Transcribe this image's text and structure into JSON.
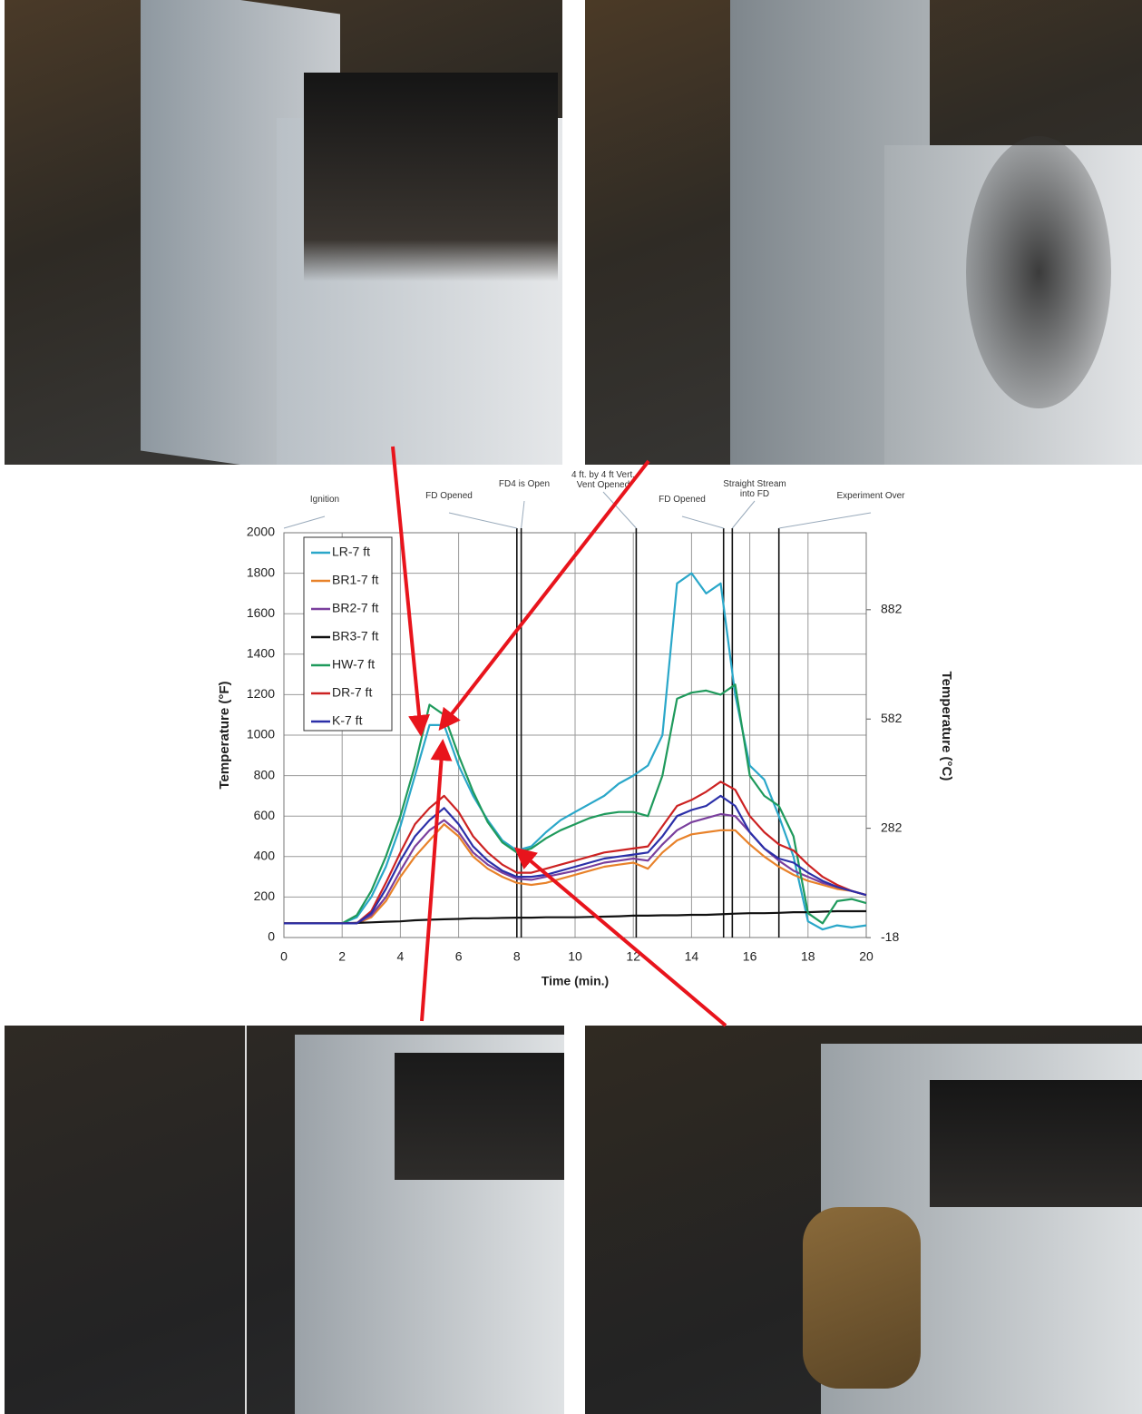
{
  "chart_data": {
    "type": "line",
    "x_label": "Time (min.)",
    "y_label": "Temperature (°F)",
    "y2_label": "Temperature (°C)",
    "xlim": [
      0,
      20
    ],
    "xticks": [
      0,
      2,
      4,
      6,
      8,
      10,
      12,
      14,
      16,
      18,
      20
    ],
    "ylim": [
      0,
      2000
    ],
    "yticks": [
      0,
      200,
      400,
      600,
      800,
      1000,
      1200,
      1400,
      1600,
      1800,
      2000
    ],
    "y2lim": [
      -17.78,
      1093.33
    ],
    "y2ticks": [
      -18,
      282,
      582,
      882
    ],
    "grid": true,
    "legend": "upper left",
    "x": [
      0,
      0.5,
      1,
      1.5,
      2,
      2.5,
      3,
      3.5,
      4,
      4.5,
      5,
      5.5,
      6,
      6.5,
      7,
      7.5,
      8,
      8.5,
      9,
      9.5,
      10,
      10.5,
      11,
      11.5,
      12,
      12.5,
      13,
      13.5,
      14,
      14.5,
      15,
      15.5,
      16,
      16.5,
      17,
      17.5,
      18,
      18.5,
      19,
      19.5,
      20
    ],
    "series": [
      {
        "name": "LR-7 ft",
        "color": "#2aa7c9",
        "values": [
          70,
          70,
          70,
          70,
          70,
          100,
          200,
          350,
          550,
          800,
          1050,
          1050,
          850,
          700,
          580,
          480,
          430,
          450,
          520,
          580,
          620,
          660,
          700,
          760,
          800,
          850,
          1000,
          1750,
          1800,
          1700,
          1750,
          1200,
          850,
          780,
          600,
          400,
          80,
          40,
          60,
          50,
          60
        ]
      },
      {
        "name": "BR1-7 ft",
        "color": "#e8822a",
        "values": [
          70,
          70,
          70,
          70,
          70,
          70,
          100,
          180,
          300,
          400,
          480,
          560,
          500,
          400,
          340,
          300,
          270,
          260,
          270,
          290,
          310,
          330,
          350,
          360,
          370,
          340,
          420,
          480,
          510,
          520,
          530,
          530,
          460,
          400,
          350,
          310,
          280,
          260,
          240,
          230,
          210
        ]
      },
      {
        "name": "BR2-7 ft",
        "color": "#7a3f9d",
        "values": [
          70,
          70,
          70,
          70,
          70,
          70,
          110,
          200,
          330,
          450,
          530,
          580,
          520,
          420,
          360,
          320,
          290,
          285,
          300,
          315,
          330,
          350,
          370,
          380,
          390,
          380,
          460,
          530,
          570,
          590,
          610,
          600,
          520,
          440,
          380,
          330,
          300,
          270,
          250,
          230,
          210
        ]
      },
      {
        "name": "BR3-7 ft",
        "color": "#111111",
        "values": [
          70,
          70,
          70,
          70,
          70,
          72,
          75,
          78,
          80,
          85,
          88,
          90,
          92,
          95,
          95,
          97,
          98,
          98,
          100,
          100,
          100,
          102,
          103,
          105,
          108,
          108,
          110,
          110,
          112,
          112,
          115,
          118,
          120,
          120,
          122,
          125,
          125,
          128,
          130,
          130,
          130
        ]
      },
      {
        "name": "HW-7 ft",
        "color": "#1f9a5c",
        "values": [
          70,
          70,
          70,
          70,
          70,
          110,
          230,
          400,
          600,
          850,
          1150,
          1100,
          900,
          720,
          570,
          470,
          420,
          440,
          490,
          530,
          560,
          590,
          610,
          620,
          620,
          600,
          800,
          1180,
          1210,
          1220,
          1200,
          1250,
          800,
          700,
          650,
          500,
          120,
          70,
          180,
          190,
          170
        ]
      },
      {
        "name": "DR-7 ft",
        "color": "#cc2222",
        "values": [
          70,
          70,
          70,
          70,
          70,
          70,
          130,
          270,
          420,
          560,
          640,
          700,
          620,
          500,
          420,
          360,
          320,
          320,
          340,
          360,
          380,
          400,
          420,
          430,
          440,
          450,
          550,
          650,
          680,
          720,
          770,
          730,
          600,
          520,
          460,
          430,
          360,
          300,
          260,
          230,
          210
        ]
      },
      {
        "name": "K-7 ft",
        "color": "#2b2fa8",
        "values": [
          70,
          70,
          70,
          70,
          70,
          70,
          120,
          240,
          380,
          500,
          580,
          640,
          560,
          450,
          380,
          330,
          300,
          300,
          310,
          330,
          350,
          370,
          390,
          400,
          410,
          420,
          500,
          600,
          630,
          650,
          700,
          650,
          520,
          440,
          390,
          370,
          320,
          280,
          250,
          230,
          210
        ]
      }
    ],
    "events": [
      {
        "label": "Ignition",
        "x": 0
      },
      {
        "label": "FD Opened",
        "x": 8
      },
      {
        "label": "FD4 is Open",
        "x": 8.15
      },
      {
        "label": "4 ft. by 4 ft Vert. Vent Opened",
        "x": 12.1
      },
      {
        "label": "FD Opened",
        "x": 15.1
      },
      {
        "label": "Straight Stream into FD",
        "x": 15.4
      },
      {
        "label": "Experiment Over",
        "x": 17
      }
    ]
  }
}
